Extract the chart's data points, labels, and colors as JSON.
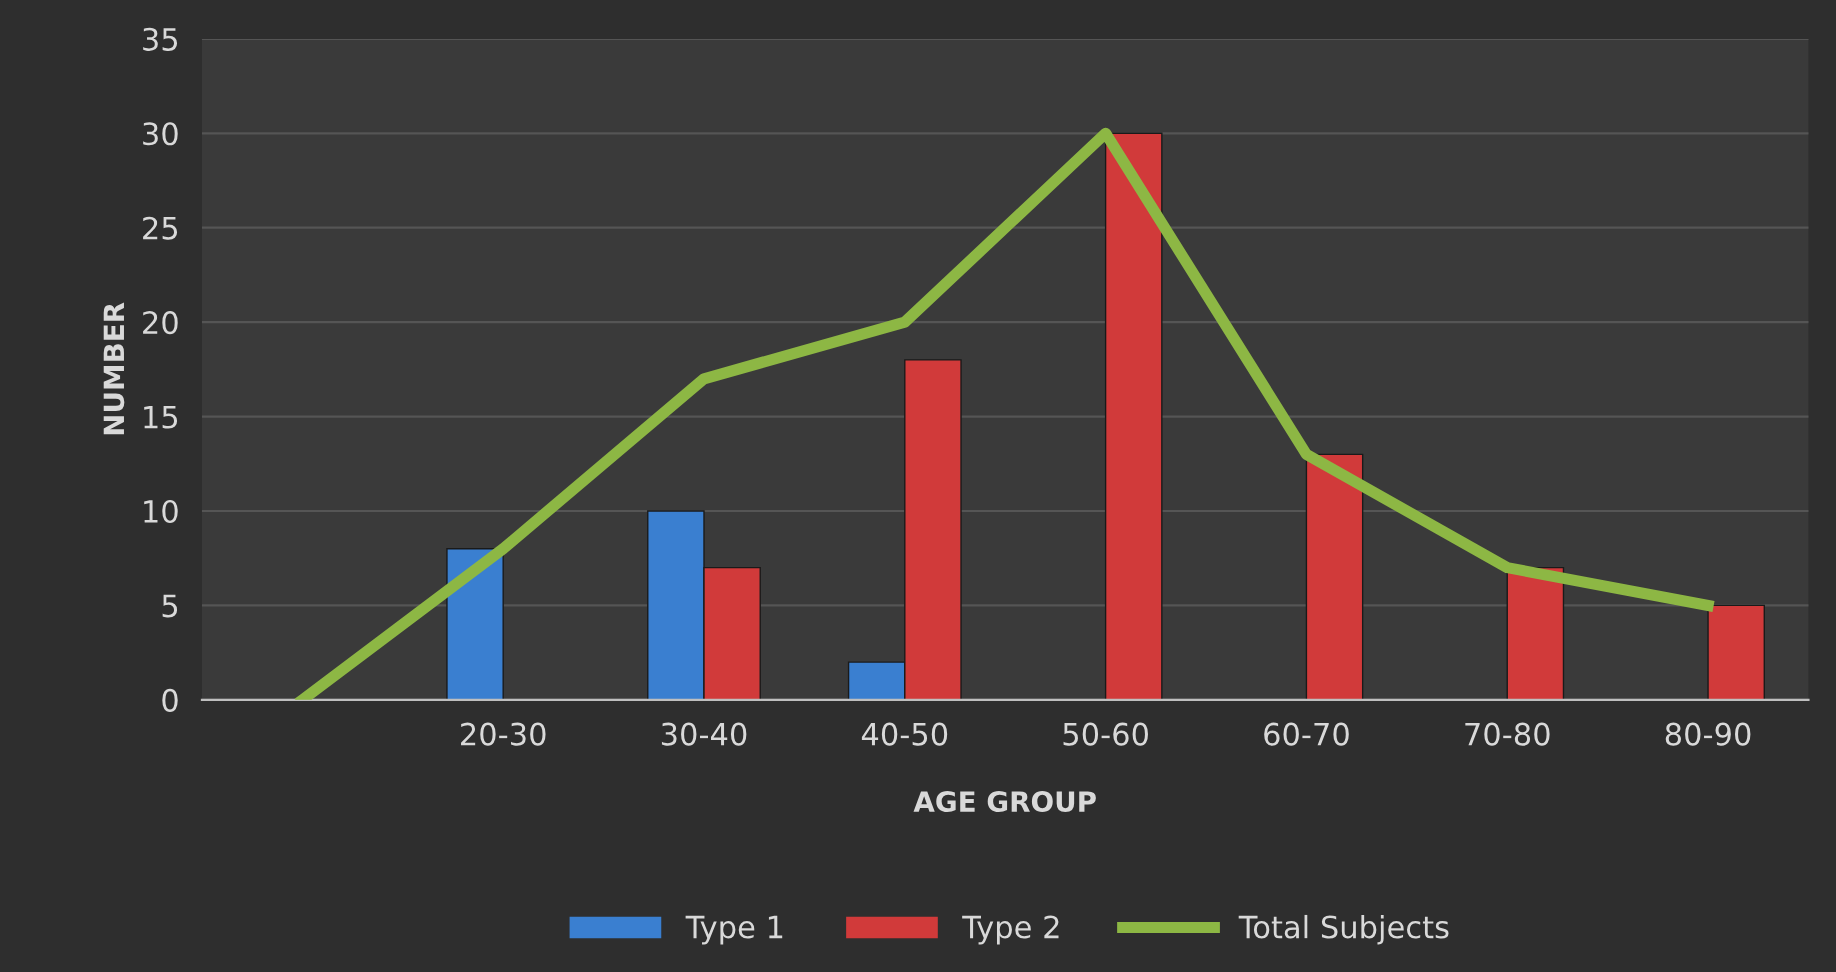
{
  "chart_data": {
    "type": "bar",
    "xlabel": "AGE GROUP",
    "ylabel": "NUMBER",
    "categories": [
      null,
      "20-30",
      "30-40",
      "40-50",
      "50-60",
      "60-70",
      "70-80",
      "80-90"
    ],
    "series": [
      {
        "name": "Type 1",
        "color": "#3a7fd0",
        "values": [
          null,
          8,
          10,
          2,
          null,
          null,
          null,
          null
        ]
      },
      {
        "name": "Type 2",
        "color": "#d13a3a",
        "values": [
          null,
          null,
          7,
          18,
          30,
          13,
          7,
          5
        ]
      },
      {
        "name": "Total Subjects",
        "type": "line",
        "color": "#8db744",
        "values": [
          0,
          8,
          17,
          20,
          30,
          13,
          7,
          5
        ]
      }
    ],
    "ylim": [
      0,
      35
    ],
    "yticks": [
      0,
      5,
      10,
      15,
      20,
      25,
      30,
      35
    ],
    "grid": "y",
    "legend": "bottom",
    "marker": "none"
  }
}
